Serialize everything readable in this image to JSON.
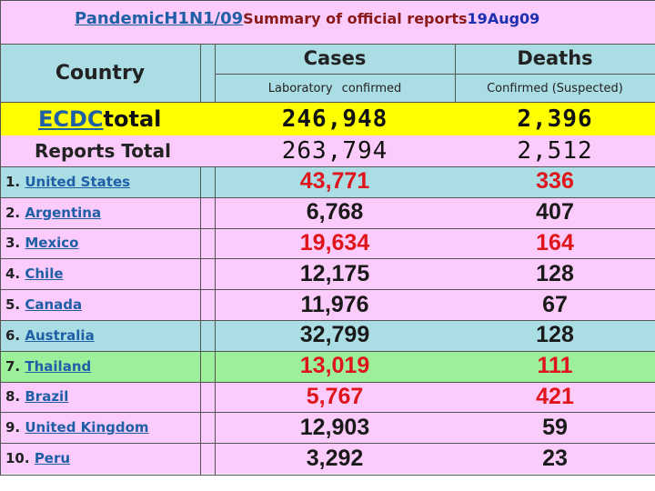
{
  "title": {
    "pandemic": "PandemicH1N1/09",
    "summary": "Summary of official reports",
    "date": "19Aug09"
  },
  "header": {
    "country": "Country",
    "cases": "Cases",
    "deaths": "Deaths",
    "cases_sub": "Laboratory confirmed",
    "deaths_sub": "Confirmed (Suspected)"
  },
  "totals": [
    {
      "label_link": "ECDC",
      "label_rest": "total",
      "cases": "246,948",
      "deaths": "2,396"
    },
    {
      "label_link": "",
      "label_rest": "Reports Total",
      "cases": "263,794",
      "deaths": "2,512"
    }
  ],
  "rows": [
    {
      "rank": "1.",
      "name": "United States",
      "cases": "43,771",
      "deaths": "336",
      "bg": "#abdde4",
      "cases_color": "red",
      "deaths_color": "red"
    },
    {
      "rank": "2.",
      "name": "Argentina",
      "cases": "6,768",
      "deaths": "407",
      "bg": "#fbccfb",
      "cases_color": "black",
      "deaths_color": "black"
    },
    {
      "rank": "3.",
      "name": "Mexico",
      "cases": "19,634",
      "deaths": "164",
      "bg": "#fbccfb",
      "cases_color": "red",
      "deaths_color": "red"
    },
    {
      "rank": "4.",
      "name": "Chile",
      "cases": "12,175",
      "deaths": "128",
      "bg": "#fbccfb",
      "cases_color": "black",
      "deaths_color": "black"
    },
    {
      "rank": "5.",
      "name": "Canada",
      "cases": "11,976",
      "deaths": "67",
      "bg": "#fbccfb",
      "cases_color": "black",
      "deaths_color": "black"
    },
    {
      "rank": "6.",
      "name": "Australia",
      "cases": "32,799",
      "deaths": "128",
      "bg": "#abdde4",
      "cases_color": "black",
      "deaths_color": "black"
    },
    {
      "rank": "7.",
      "name": "Thailand",
      "cases": "13,019",
      "deaths": "111",
      "bg": "#9cf09c",
      "cases_color": "red",
      "deaths_color": "red"
    },
    {
      "rank": "8.",
      "name": "Brazil",
      "cases": "5,767",
      "deaths": "421",
      "bg": "#fbccfb",
      "cases_color": "red",
      "deaths_color": "red"
    },
    {
      "rank": "9.",
      "name": "United Kingdom",
      "cases": "12,903",
      "deaths": "59",
      "bg": "#fbccfb",
      "cases_color": "black",
      "deaths_color": "black"
    },
    {
      "rank": "10.",
      "name": "Peru",
      "cases": "3,292",
      "deaths": "23",
      "bg": "#fbccfb",
      "cases_color": "black",
      "deaths_color": "black"
    }
  ],
  "colors": {
    "title_bg": "#fbccfb",
    "header_bg": "#abdde4",
    "ecdc_bg": "#ffff00",
    "reports_bg": "#fbccfb",
    "red": "#e0141b"
  }
}
